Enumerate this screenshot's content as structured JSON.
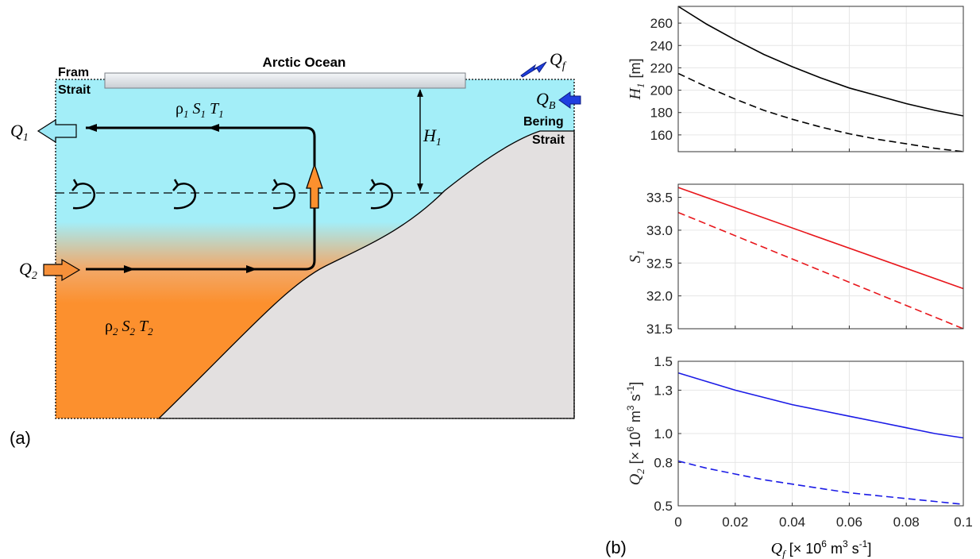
{
  "schematic": {
    "panel_label": "(a)",
    "ice_label": "Arctic Ocean",
    "fram_line1": "Fram",
    "fram_line2": "Strait",
    "bering_line1": "Bering",
    "bering_line2": "Strait",
    "q1": "Q",
    "q1_sub": "1",
    "q2": "Q",
    "q2_sub": "2",
    "qf": "Q",
    "qf_sub": "f",
    "qb": "Q",
    "qb_sub": "B",
    "h1": "H",
    "h1_sub": "1",
    "upper_props": [
      "ρ",
      "1",
      "S",
      "1",
      "T",
      "1"
    ],
    "lower_props": [
      "ρ",
      "2",
      "S",
      "2",
      "T",
      "2"
    ],
    "colors": {
      "upper_layer": "#a3eef8",
      "lower_layer": "#fc902e",
      "land": "#e3e0e0",
      "qf_arrow": "#1f3fe0",
      "q1_arrow": "#9de9f6",
      "q2_arrow": "#f6903a"
    }
  },
  "panel_b_label": "(b)",
  "xaxis": {
    "ticks": [
      "0",
      "0.02",
      "0.04",
      "0.06",
      "0.08",
      "0.1"
    ],
    "label_sym": "Q",
    "label_sub": "f",
    "label_unit": "[× 10",
    "label_exp": "6",
    "label_unit2": "m",
    "label_exp2": "3",
    "label_unit3": "s",
    "label_exp3": "-1",
    "label_close": "]"
  },
  "chart_data": [
    {
      "type": "line",
      "ylabel_sym": "H",
      "ylabel_sub": "1",
      "ylabel_unit": "[m]",
      "xlim": [
        0,
        0.1
      ],
      "ylim": [
        145,
        275
      ],
      "yticks": [
        160,
        180,
        200,
        220,
        240,
        260
      ],
      "ytick_labels": [
        "160",
        "180",
        "200",
        "220",
        "240",
        "260"
      ],
      "grid": true,
      "x": [
        0,
        0.01,
        0.02,
        0.03,
        0.04,
        0.05,
        0.06,
        0.07,
        0.08,
        0.09,
        0.1
      ],
      "series": [
        {
          "style": "solid",
          "color": "#000000",
          "values": [
            275,
            259,
            245,
            232,
            221,
            211,
            202,
            195,
            188,
            182,
            177
          ]
        },
        {
          "style": "dashed",
          "color": "#000000",
          "values": [
            215,
            203,
            192,
            182,
            174,
            167,
            161,
            156,
            152,
            148,
            145
          ]
        }
      ]
    },
    {
      "type": "line",
      "ylabel_sym": "S",
      "ylabel_sub": "1",
      "ylabel_unit": "",
      "xlim": [
        0,
        0.1
      ],
      "ylim": [
        31.5,
        33.7
      ],
      "yticks": [
        31.5,
        32.0,
        32.5,
        33.0,
        33.5
      ],
      "ytick_labels": [
        "31.5",
        "32.0",
        "32.5",
        "33.0",
        "33.5"
      ],
      "grid": true,
      "x": [
        0,
        0.1
      ],
      "series": [
        {
          "style": "solid",
          "color": "#e8161b",
          "values": [
            33.65,
            32.11
          ]
        },
        {
          "style": "dashed",
          "color": "#e8161b",
          "values": [
            33.27,
            31.5
          ]
        }
      ]
    },
    {
      "type": "line",
      "ylabel_sym": "Q",
      "ylabel_sub": "2",
      "ylabel_unit": "[× 10",
      "ylabel_exp": "6",
      "ylabel_unit2": "m",
      "ylabel_exp2": "3",
      "ylabel_unit3": "s",
      "ylabel_exp3": "-1",
      "ylabel_close": "]",
      "xlim": [
        0,
        0.1
      ],
      "ylim": [
        0.5,
        1.5
      ],
      "yticks": [
        0.5,
        0.8,
        1.0,
        1.3,
        1.5
      ],
      "ytick_labels": [
        "0.5",
        "0.8",
        "1.0",
        "1.3",
        "1.5"
      ],
      "grid": true,
      "x": [
        0,
        0.01,
        0.02,
        0.03,
        0.04,
        0.05,
        0.06,
        0.07,
        0.08,
        0.09,
        0.1
      ],
      "series": [
        {
          "style": "solid",
          "color": "#1a1ae6",
          "values": [
            1.42,
            1.36,
            1.3,
            1.25,
            1.2,
            1.16,
            1.12,
            1.08,
            1.04,
            1.0,
            0.97
          ]
        },
        {
          "style": "dashed",
          "color": "#1a1ae6",
          "values": [
            0.81,
            0.76,
            0.72,
            0.68,
            0.65,
            0.62,
            0.59,
            0.57,
            0.55,
            0.53,
            0.51
          ]
        }
      ]
    }
  ]
}
